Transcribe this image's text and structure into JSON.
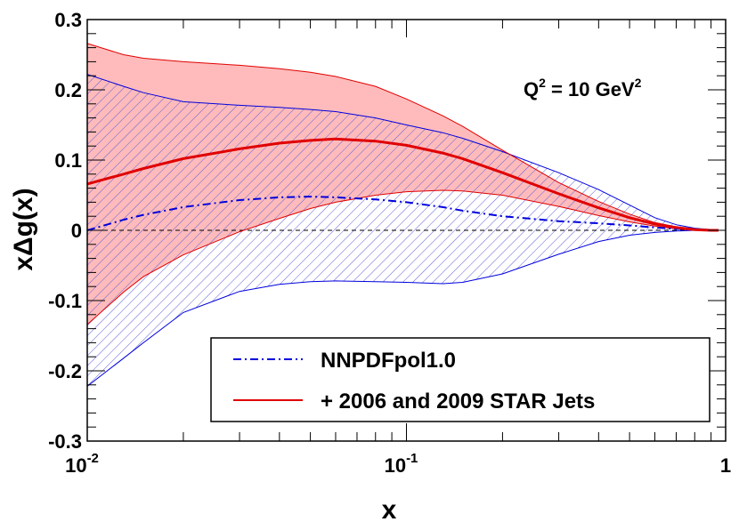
{
  "chart_data": {
    "type": "area",
    "title": "",
    "xlabel": "x",
    "ylabel": "xΔg(x)",
    "xscale": "log",
    "xlim": [
      0.01,
      1
    ],
    "ylim": [
      -0.3,
      0.3
    ],
    "x_tick_labels": [
      {
        "base": "10",
        "exp": "-2",
        "value": 0.01
      },
      {
        "base": "10",
        "exp": "-1",
        "value": 0.1
      },
      {
        "text": "1",
        "value": 1
      }
    ],
    "y_ticks": [
      {
        "label": "0.3",
        "value": 0.3
      },
      {
        "label": "0.2",
        "value": 0.2
      },
      {
        "label": "0.1",
        "value": 0.1
      },
      {
        "label": "0",
        "value": 0
      },
      {
        "label": "-0.1",
        "value": -0.1
      },
      {
        "label": "-0.2",
        "value": -0.2
      },
      {
        "label": "-0.3",
        "value": -0.3
      }
    ],
    "annotation": {
      "q": "Q",
      "q_exp": "2",
      "middle": " = 10 GeV",
      "unit_exp": "2"
    },
    "legend_position": "bottom-right",
    "x": [
      0.01,
      0.013,
      0.015,
      0.02,
      0.03,
      0.04,
      0.05,
      0.06,
      0.08,
      0.1,
      0.13,
      0.15,
      0.2,
      0.3,
      0.4,
      0.5,
      0.6,
      0.7,
      0.8,
      0.9,
      0.95
    ],
    "series": [
      {
        "name": "NNPDFpol1.0",
        "line_color": "#0000dd",
        "line_style": "dashdot",
        "band_fill": "hatch",
        "central": [
          0.0,
          0.015,
          0.022,
          0.033,
          0.043,
          0.047,
          0.048,
          0.047,
          0.044,
          0.04,
          0.033,
          0.028,
          0.02,
          0.013,
          0.01,
          0.007,
          0.004,
          0.002,
          0.001,
          0.0,
          0.0
        ],
        "upper": [
          0.222,
          0.205,
          0.196,
          0.183,
          0.178,
          0.175,
          0.172,
          0.169,
          0.16,
          0.15,
          0.139,
          0.131,
          0.112,
          0.082,
          0.058,
          0.036,
          0.018,
          0.008,
          0.003,
          0.001,
          0.0
        ],
        "lower": [
          -0.222,
          -0.182,
          -0.16,
          -0.117,
          -0.087,
          -0.077,
          -0.073,
          -0.072,
          -0.073,
          -0.074,
          -0.076,
          -0.074,
          -0.062,
          -0.034,
          -0.016,
          -0.007,
          -0.003,
          -0.001,
          0.0,
          0.0,
          0.0
        ]
      },
      {
        "name": "+ 2006 and 2009 STAR Jets",
        "line_color": "#e00000",
        "line_style": "solid",
        "band_fill": "#ffbbbb",
        "central": [
          0.066,
          0.08,
          0.088,
          0.102,
          0.116,
          0.124,
          0.128,
          0.13,
          0.127,
          0.121,
          0.11,
          0.102,
          0.082,
          0.052,
          0.032,
          0.018,
          0.009,
          0.004,
          0.001,
          0.0,
          0.0
        ],
        "upper": [
          0.266,
          0.25,
          0.245,
          0.24,
          0.235,
          0.23,
          0.225,
          0.219,
          0.205,
          0.187,
          0.163,
          0.148,
          0.114,
          0.068,
          0.041,
          0.023,
          0.011,
          0.005,
          0.002,
          0.0,
          0.0
        ],
        "lower": [
          -0.134,
          -0.088,
          -0.066,
          -0.035,
          -0.002,
          0.017,
          0.031,
          0.04,
          0.05,
          0.055,
          0.057,
          0.056,
          0.05,
          0.034,
          0.021,
          0.012,
          0.006,
          0.002,
          0.0,
          0.0,
          0.0
        ]
      }
    ]
  }
}
